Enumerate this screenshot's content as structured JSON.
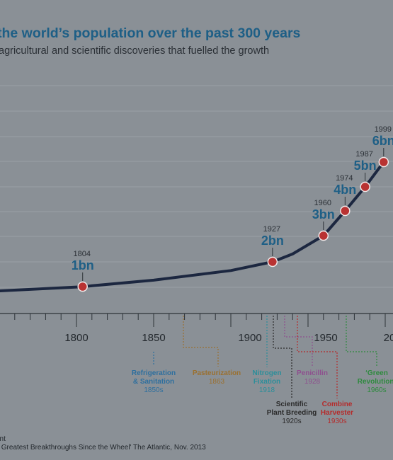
{
  "chart_data": {
    "type": "line",
    "title": "the world’s population over the past 300 years",
    "subtitle": "agricultural and scientific discoveries that fuelled the growth",
    "xlabel": "",
    "ylabel": "",
    "x_ticks": [
      "1800",
      "1850",
      "1900",
      "1950",
      "20"
    ],
    "xlim": [
      1750,
      2010
    ],
    "grid": true,
    "legend": "none",
    "series": [
      {
        "x": [
          1750,
          1800,
          1804,
          1850,
          1900,
          1927,
          1940,
          1960,
          1974,
          1987,
          1999
        ],
        "y": [
          0.79,
          0.98,
          1,
          1.26,
          1.65,
          2,
          2.3,
          3,
          4,
          5,
          6
        ]
      }
    ],
    "milestones": [
      {
        "year": "1804",
        "value": "1bn",
        "x": 1804,
        "y": 1
      },
      {
        "year": "1927",
        "value": "2bn",
        "x": 1927,
        "y": 2
      },
      {
        "year": "1960",
        "value": "3bn",
        "x": 1960,
        "y": 3
      },
      {
        "year": "1974",
        "value": "4bn",
        "x": 1974,
        "y": 4
      },
      {
        "year": "1987",
        "value": "5bn",
        "x": 1987,
        "y": 5
      },
      {
        "year": "1999",
        "value": "6bn",
        "x": 1999,
        "y": 6
      }
    ],
    "events": [
      {
        "label": [
          "Refrigeration",
          "& Sanitation"
        ],
        "date": "1850s",
        "color": "#2e6f9e",
        "year": 1850
      },
      {
        "label": [
          "Pasteurization"
        ],
        "date": "1863",
        "color": "#9a7030",
        "year": 1863
      },
      {
        "label": [
          "Nitrogen",
          "Fixation"
        ],
        "date": "1918",
        "color": "#2c8e9a",
        "year": 1918
      },
      {
        "label": [
          "Scientific",
          "Plant Breeding"
        ],
        "date": "1920s",
        "color": "#2a2a2a",
        "year": 1925
      },
      {
        "label": [
          "Penicillin"
        ],
        "date": "1928",
        "color": "#8e4f8e",
        "year": 1928
      },
      {
        "label": [
          "Combine",
          "Harvester"
        ],
        "date": "1930s",
        "color": "#b52b2b",
        "year": 1935
      },
      {
        "label": [
          "‘Green",
          "Revolution’"
        ],
        "date": "1960s",
        "color": "#2e8a3e",
        "year": 1960
      }
    ],
    "colors": {
      "line": "#1c2740",
      "marker": "#b93232",
      "milestone_text": "#1e5f86"
    }
  },
  "footer": {
    "line1": "ant",
    "line2": "y Greatest Breakthroughs Since the Wheel' The Atlantic, Nov. 2013"
  }
}
